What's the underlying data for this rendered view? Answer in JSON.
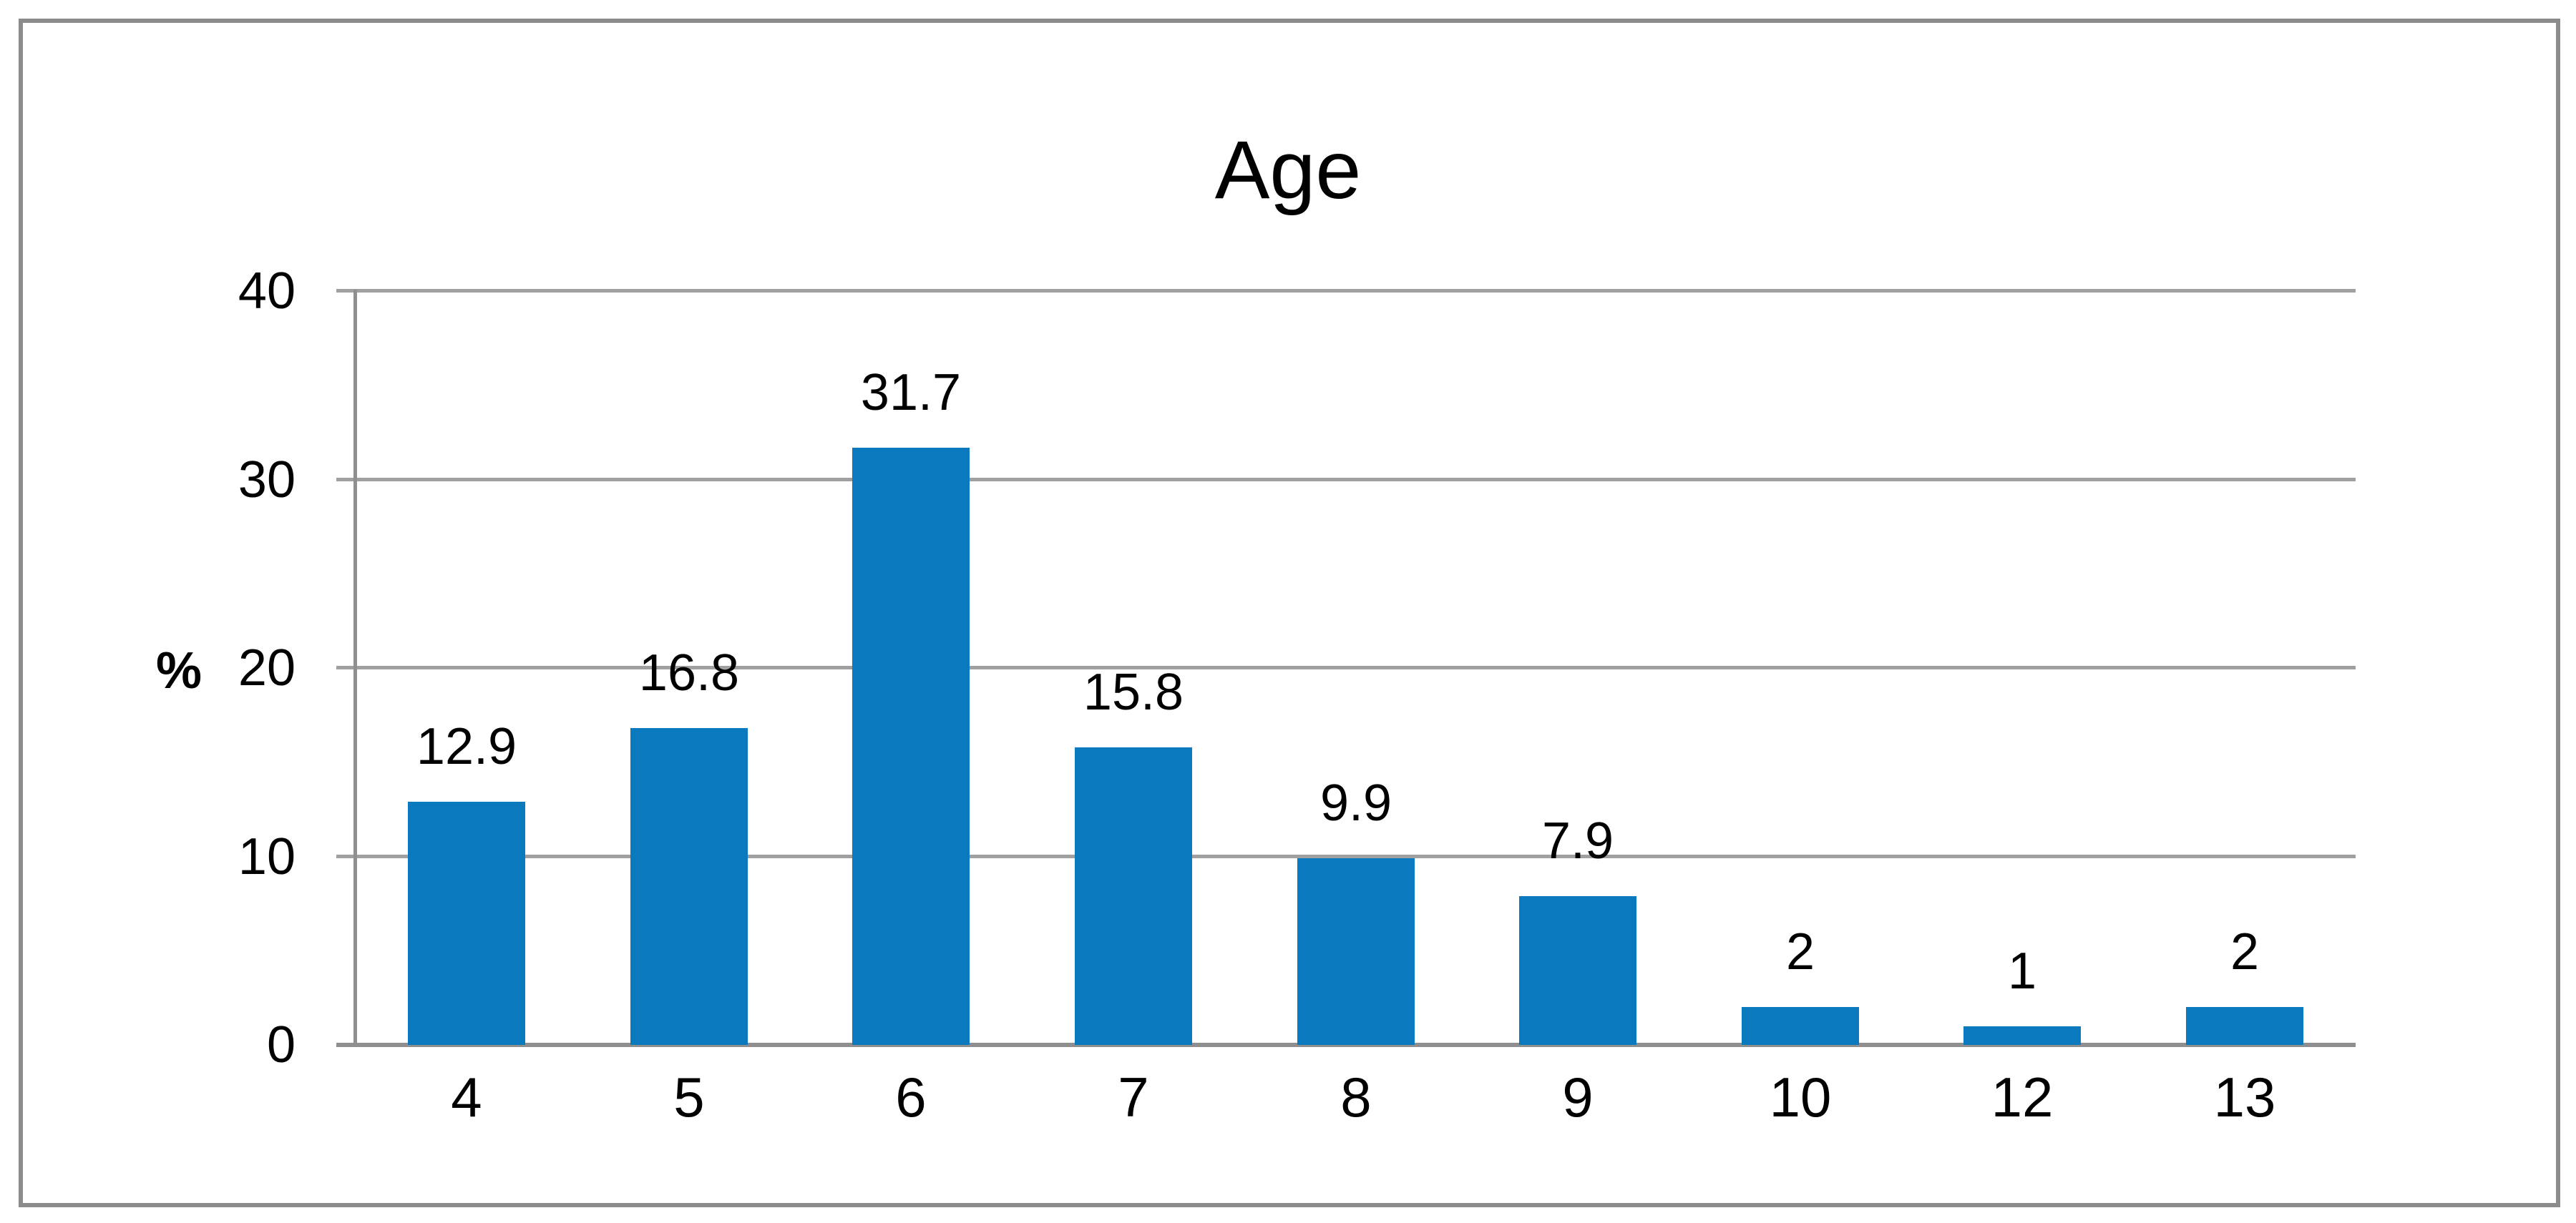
{
  "chart_data": {
    "type": "bar",
    "title": "Age",
    "ylabel": "%",
    "xlabel": "",
    "categories": [
      "4",
      "5",
      "6",
      "7",
      "8",
      "9",
      "10",
      "12",
      "13"
    ],
    "values": [
      12.9,
      16.8,
      31.7,
      15.8,
      9.9,
      7.9,
      2,
      1,
      2
    ],
    "data_labels": [
      "12.9",
      "16.8",
      "31.7",
      "15.8",
      "9.9",
      "7.9",
      "2",
      "1",
      "2"
    ],
    "y_ticks": [
      0,
      10,
      20,
      30,
      40
    ],
    "y_tick_labels": [
      "0",
      "10",
      "20",
      "30",
      "40"
    ],
    "ylim": [
      0,
      40
    ],
    "grid": true,
    "legend": "none",
    "bar_color": "#0a79be",
    "grid_color": "#a0a0a0",
    "axis_color": "#8f8f8f",
    "frame_border_color": "#8c8c8c",
    "text_color": "#000000",
    "background_color": "#ffffff"
  }
}
